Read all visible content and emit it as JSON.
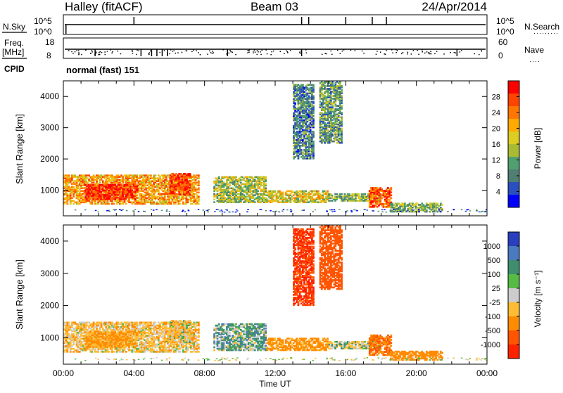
{
  "header": {
    "station": "Halley (fitACF)",
    "beam": "Beam 03",
    "date": "24/Apr/2014"
  },
  "strip1": {
    "left_label": "N.Sky",
    "right_label": "N.Search",
    "left_ticks": [
      "10^5",
      "10^0"
    ],
    "right_ticks": [
      "10^5",
      "10^0"
    ]
  },
  "strip2": {
    "left_label_top": "Freq.",
    "left_label_bottom": "[MHz]",
    "right_label": "Nave",
    "left_ticks": [
      "18",
      "8"
    ],
    "right_ticks": [
      "60",
      "0"
    ]
  },
  "cpid": {
    "label": "CPID",
    "program": "normal (fast) 151"
  },
  "x_axis": {
    "label": "Time UT",
    "ticks": [
      "00:00",
      "04:00",
      "08:00",
      "12:00",
      "16:00",
      "20:00",
      "00:00"
    ]
  },
  "power_panel": {
    "ylabel": "Slant Range [km]",
    "yticks": [
      "4000",
      "3000",
      "2000",
      "1000"
    ],
    "colorbar_label": "Power [dB]",
    "colorbar_ticks": [
      "28",
      "24",
      "20",
      "16",
      "12",
      "8",
      "4"
    ]
  },
  "velocity_panel": {
    "ylabel": "Slant Range [km]",
    "yticks": [
      "4000",
      "3000",
      "2000",
      "1000"
    ],
    "colorbar_label": "Velocity  [m s⁻¹]",
    "colorbar_ticks": [
      "1000",
      "500",
      "100",
      "25",
      "-25",
      "-100",
      "-500",
      "-1000"
    ]
  },
  "colors": {
    "power_scale": [
      "#0000ff",
      "#2a4fbf",
      "#4f7f72",
      "#4f9f6f",
      "#aabb33",
      "#ddcc22",
      "#ffaa00",
      "#ff7700",
      "#ff4400",
      "#ff0000"
    ],
    "velocity_scale": [
      "#2a3fbf",
      "#4a7abf",
      "#3f8f6f",
      "#55bb44",
      "#cccccc",
      "#ffbb33",
      "#ff8c00",
      "#ff5500",
      "#ff2200"
    ]
  },
  "chart_data": {
    "type": "heatmap",
    "x_range_hours": [
      0,
      24
    ],
    "y_range_km": [
      180,
      4500
    ],
    "power_db_range": [
      0,
      30
    ],
    "velocity_range": [
      -1000,
      1000
    ],
    "echo_regions": [
      {
        "t0": 0.0,
        "t1": 7.7,
        "r0": 550,
        "r1": 1500,
        "power": 20,
        "velocity": -60
      },
      {
        "t0": 1.2,
        "t1": 4.2,
        "r0": 700,
        "r1": 1200,
        "power": 27,
        "velocity": -120
      },
      {
        "t0": 6.0,
        "t1": 7.2,
        "r0": 850,
        "r1": 1550,
        "power": 26,
        "velocity": -40
      },
      {
        "t0": 8.5,
        "t1": 11.5,
        "r0": 600,
        "r1": 1450,
        "power": 14,
        "velocity": 40
      },
      {
        "t0": 11.5,
        "t1": 15.0,
        "r0": 600,
        "r1": 1000,
        "power": 16,
        "velocity": -150
      },
      {
        "t0": 15.0,
        "t1": 18.0,
        "r0": 650,
        "r1": 900,
        "power": 12,
        "velocity": 0
      },
      {
        "t0": 17.3,
        "t1": 18.6,
        "r0": 450,
        "r1": 1100,
        "power": 24,
        "velocity": -300
      },
      {
        "t0": 13.0,
        "t1": 14.2,
        "r0": 2000,
        "r1": 4400,
        "power": 8,
        "velocity": -600
      },
      {
        "t0": 14.5,
        "t1": 15.8,
        "r0": 2500,
        "r1": 4500,
        "power": 10,
        "velocity": -500
      },
      {
        "t0": 18.5,
        "t1": 21.5,
        "r0": 300,
        "r1": 600,
        "power": 12,
        "velocity": -200
      }
    ],
    "title": "Halley (fitACF)"
  }
}
